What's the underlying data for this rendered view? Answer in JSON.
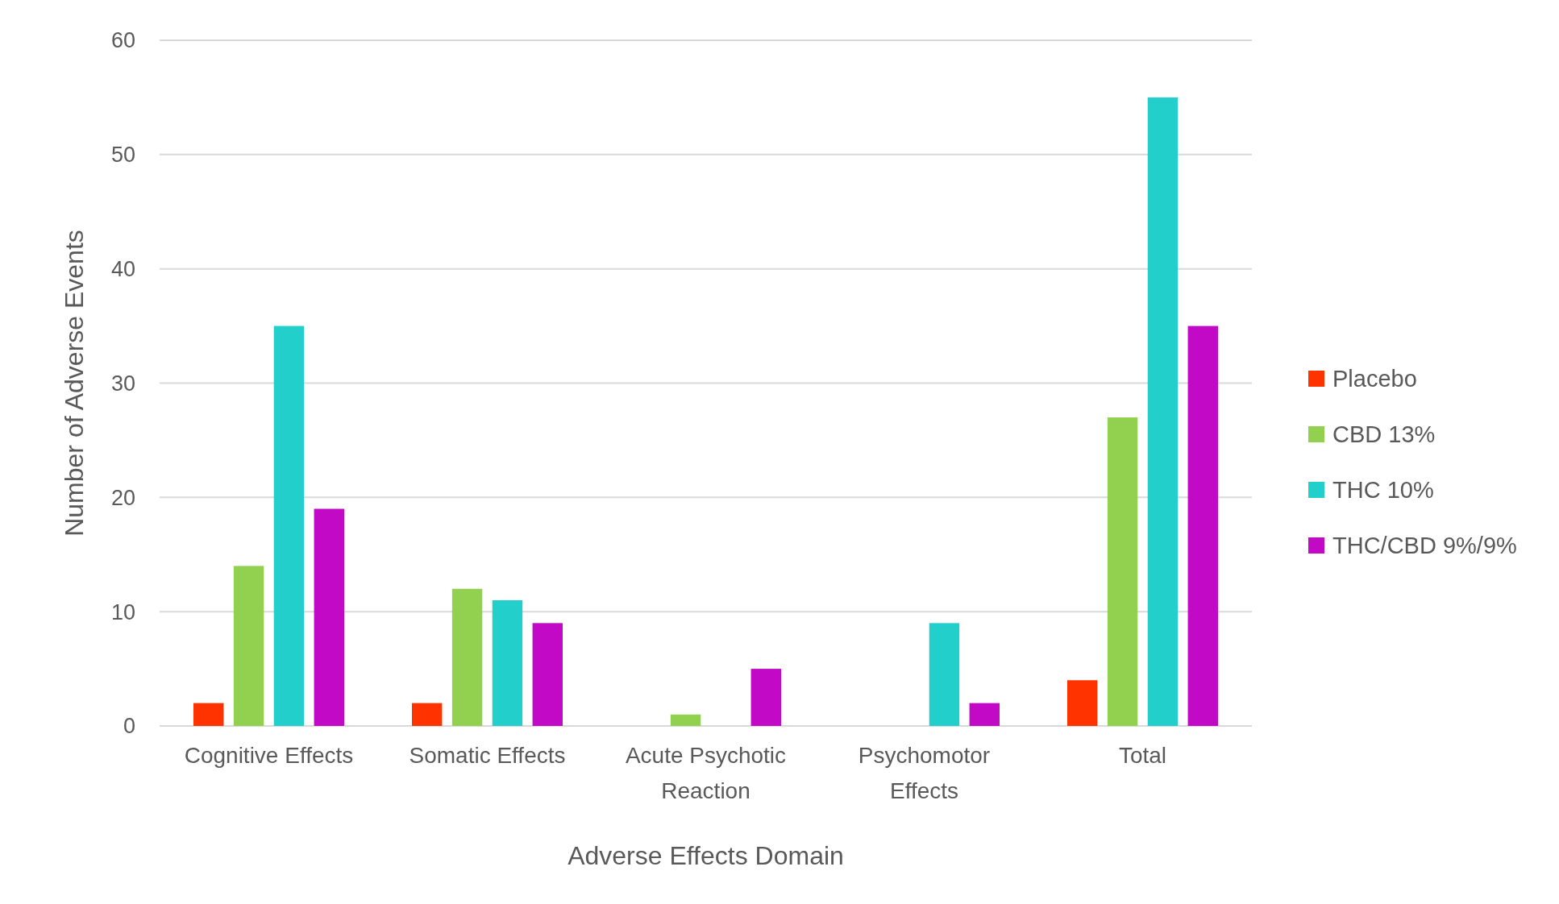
{
  "chart_data": {
    "type": "bar",
    "xlabel": "Adverse Effects Domain",
    "ylabel": "Number of Adverse Events",
    "categories": [
      "Cognitive Effects",
      "Somatic Effects",
      "Acute Psychotic Reaction",
      "Psychomotor Effects",
      "Total"
    ],
    "series": [
      {
        "name": "Placebo",
        "color": "#ff3300",
        "values": [
          2,
          2,
          0,
          0,
          4
        ]
      },
      {
        "name": "CBD 13%",
        "color": "#92d050",
        "values": [
          14,
          12,
          1,
          0,
          27
        ]
      },
      {
        "name": "THC 10%",
        "color": "#22cfca",
        "values": [
          35,
          11,
          0,
          9,
          55
        ]
      },
      {
        "name": "THC/CBD 9%/9%",
        "color": "#c20ac6",
        "values": [
          19,
          9,
          5,
          2,
          35
        ]
      }
    ],
    "ylim": [
      0,
      60
    ],
    "yticks": [
      0,
      10,
      20,
      30,
      40,
      50,
      60
    ],
    "grid": "y",
    "legend": "right"
  }
}
